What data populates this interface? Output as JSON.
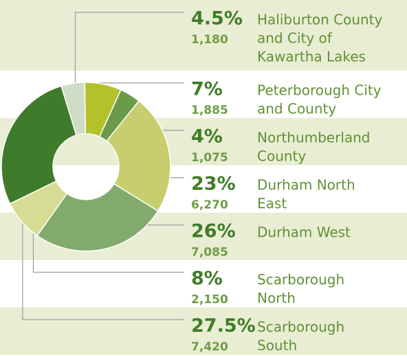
{
  "chart_data": {
    "type": "donut",
    "categories": [
      [
        "Haliburton County",
        "and City of",
        "Kawartha Lakes"
      ],
      [
        "Peterborough City",
        "and County"
      ],
      [
        "Northumberland",
        "County"
      ],
      [
        "Durham North",
        "East"
      ],
      [
        "Durham West"
      ],
      [
        "Scarborough",
        "North"
      ],
      [
        "Scarborough",
        "South"
      ]
    ],
    "values": [
      4.5,
      7,
      4,
      23,
      26,
      8,
      27.5
    ],
    "value_labels": [
      "4.5%",
      "7%",
      "4%",
      "23%",
      "26%",
      "8%",
      "27.5%"
    ],
    "counts": [
      1180,
      1885,
      1075,
      6270,
      7085,
      2150,
      7420
    ],
    "count_labels": [
      "1,180",
      "1,885",
      "1,075",
      "6,270",
      "7,085",
      "2,150",
      "7,420"
    ],
    "colors": [
      "#cfdcc6",
      "#b3c22a",
      "#6a9a4a",
      "#c8cd6e",
      "#82aa6e",
      "#d6dc94",
      "#3e7b2a"
    ]
  }
}
